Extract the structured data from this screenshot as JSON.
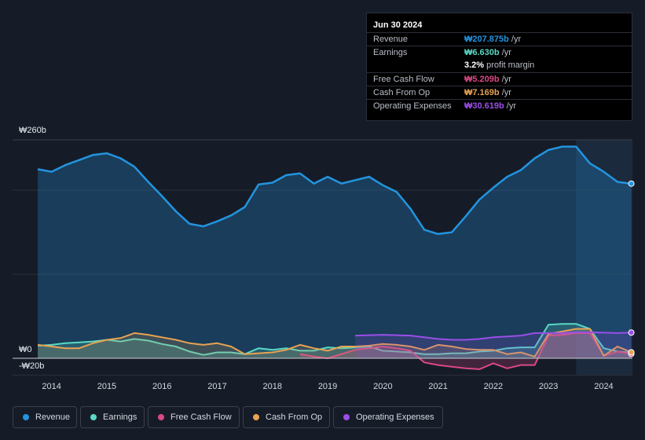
{
  "tooltip": {
    "date": "Jun 30 2024",
    "rows": [
      {
        "label": "Revenue",
        "value": "₩207.875b",
        "unit": " /yr",
        "color": "#2394df"
      },
      {
        "label": "Earnings",
        "value": "₩6.630b",
        "unit": " /yr",
        "color": "#5ad8c4"
      },
      {
        "label": "",
        "value": "3.2%",
        "unit": " profit margin",
        "color": "#ffffff"
      },
      {
        "label": "Free Cash Flow",
        "value": "₩5.209b",
        "unit": " /yr",
        "color": "#d94887"
      },
      {
        "label": "Cash From Op",
        "value": "₩7.169b",
        "unit": " /yr",
        "color": "#e8a252"
      },
      {
        "label": "Operating Expenses",
        "value": "₩30.619b",
        "unit": " /yr",
        "color": "#9a4ee8"
      }
    ]
  },
  "axis": {
    "y_top": "₩260b",
    "y_zero": "₩0",
    "y_bottom": "-₩20b"
  },
  "legend": [
    "Revenue",
    "Earnings",
    "Free Cash Flow",
    "Cash From Op",
    "Operating Expenses"
  ],
  "chart_data": {
    "type": "area",
    "ylim": [
      -20,
      260
    ],
    "x_ticks": [
      "2014",
      "2015",
      "2016",
      "2017",
      "2018",
      "2019",
      "2020",
      "2021",
      "2022",
      "2023",
      "2024"
    ],
    "series": [
      {
        "name": "Revenue",
        "color": "#2394df",
        "x": [
          2013.75,
          2014.0,
          2014.25,
          2014.5,
          2014.75,
          2015.0,
          2015.25,
          2015.5,
          2015.75,
          2016.0,
          2016.25,
          2016.5,
          2016.75,
          2017.0,
          2017.25,
          2017.5,
          2017.75,
          2018.0,
          2018.25,
          2018.5,
          2018.75,
          2019.0,
          2019.25,
          2019.5,
          2019.75,
          2020.0,
          2020.25,
          2020.5,
          2020.75,
          2021.0,
          2021.25,
          2021.5,
          2021.75,
          2022.0,
          2022.25,
          2022.5,
          2022.75,
          2023.0,
          2023.25,
          2023.5,
          2023.75,
          2024.0,
          2024.25,
          2024.5
        ],
        "y": [
          225,
          222,
          230,
          236,
          242,
          244,
          238,
          228,
          210,
          193,
          175,
          160,
          157,
          163,
          170,
          180,
          207,
          209,
          218,
          220,
          208,
          216,
          208,
          212,
          216,
          206,
          198,
          178,
          153,
          148,
          150,
          169,
          189,
          203,
          216,
          224,
          238,
          248,
          252,
          252,
          232,
          222,
          210,
          207.875
        ]
      },
      {
        "name": "Earnings",
        "color": "#5ad8c4",
        "x": [
          2013.75,
          2014.0,
          2014.25,
          2014.5,
          2014.75,
          2015.0,
          2015.25,
          2015.5,
          2015.75,
          2016.0,
          2016.25,
          2016.5,
          2016.75,
          2017.0,
          2017.25,
          2017.5,
          2017.75,
          2018.0,
          2018.25,
          2018.5,
          2018.75,
          2019.0,
          2019.25,
          2019.5,
          2019.75,
          2020.0,
          2020.25,
          2020.5,
          2020.75,
          2021.0,
          2021.25,
          2021.5,
          2021.75,
          2022.0,
          2022.25,
          2022.5,
          2022.75,
          2023.0,
          2023.25,
          2023.5,
          2023.75,
          2024.0,
          2024.25,
          2024.5
        ],
        "y": [
          15,
          16,
          18,
          19,
          20,
          22,
          20,
          23,
          21,
          17,
          14,
          8,
          4,
          7,
          7,
          5,
          12,
          10,
          12,
          9,
          9,
          13,
          12,
          13,
          14,
          9,
          8,
          7,
          5,
          5,
          6,
          6,
          8,
          9,
          12,
          13,
          13,
          40,
          41,
          41,
          35,
          12,
          8,
          6.63
        ]
      },
      {
        "name": "Free Cash Flow",
        "color": "#d94887",
        "x": [
          2018.5,
          2018.75,
          2019.0,
          2019.25,
          2019.5,
          2019.75,
          2020.0,
          2020.25,
          2020.5,
          2020.75,
          2021.0,
          2021.25,
          2021.5,
          2021.75,
          2022.0,
          2022.25,
          2022.5,
          2022.75,
          2023.0,
          2023.25,
          2023.5,
          2023.75,
          2024.0,
          2024.25,
          2024.5
        ],
        "y": [
          5,
          2,
          0,
          5,
          10,
          12,
          14,
          12,
          9,
          -5,
          -8,
          -10,
          -12,
          -13,
          -6,
          -12,
          -8,
          -8,
          27,
          28,
          30,
          30,
          3,
          8,
          5.209
        ]
      },
      {
        "name": "Cash From Op",
        "color": "#e8a252",
        "x": [
          2013.75,
          2014.0,
          2014.25,
          2014.5,
          2014.75,
          2015.0,
          2015.25,
          2015.5,
          2015.75,
          2016.0,
          2016.25,
          2016.5,
          2016.75,
          2017.0,
          2017.25,
          2017.5,
          2017.75,
          2018.0,
          2018.25,
          2018.5,
          2018.75,
          2019.0,
          2019.25,
          2019.5,
          2019.75,
          2020.0,
          2020.25,
          2020.5,
          2020.75,
          2021.0,
          2021.25,
          2021.5,
          2021.75,
          2022.0,
          2022.25,
          2022.5,
          2022.75,
          2023.0,
          2023.25,
          2023.5,
          2023.75,
          2024.0,
          2024.25,
          2024.5
        ],
        "y": [
          16,
          14,
          12,
          12,
          18,
          22,
          24,
          30,
          28,
          25,
          22,
          18,
          16,
          18,
          14,
          5,
          6,
          7,
          10,
          16,
          12,
          9,
          14,
          14,
          15,
          17,
          16,
          14,
          10,
          16,
          14,
          11,
          10,
          10,
          5,
          7,
          2,
          29,
          32,
          35,
          35,
          3,
          14,
          7.169
        ]
      },
      {
        "name": "Operating Expenses",
        "color": "#9a4ee8",
        "x": [
          2019.5,
          2019.75,
          2020.0,
          2020.25,
          2020.5,
          2020.75,
          2021.0,
          2021.25,
          2021.5,
          2021.75,
          2022.0,
          2022.25,
          2022.5,
          2022.75,
          2023.0,
          2023.25,
          2023.5,
          2023.75,
          2024.0,
          2024.25,
          2024.5
        ],
        "y": [
          27,
          27.5,
          28,
          27.5,
          27,
          25,
          23,
          22,
          22,
          23,
          25,
          26,
          27,
          30,
          30,
          30,
          31,
          31,
          30.5,
          30,
          30.619
        ]
      }
    ]
  }
}
